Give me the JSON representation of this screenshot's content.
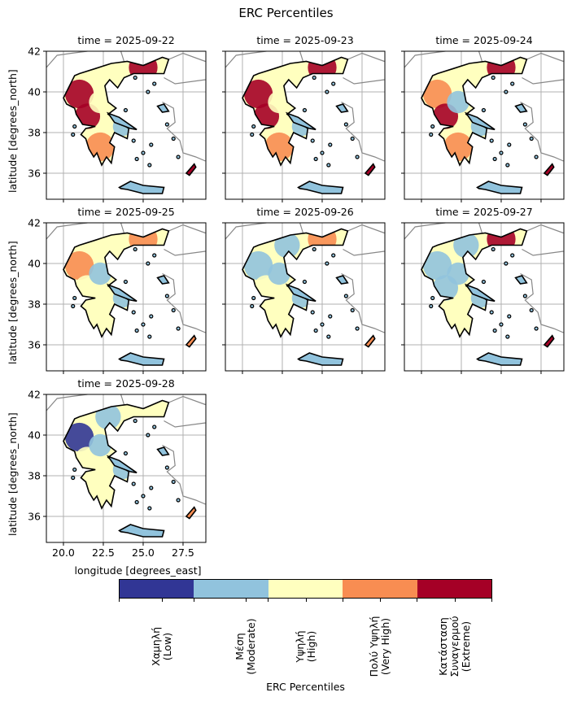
{
  "title": "ERC Percentiles",
  "chart_data": {
    "type": "heatmap",
    "title": "ERC Percentiles",
    "xlabel": "longitude [degrees_east]",
    "ylabel": "latitude [degrees_north]",
    "xlim": [
      18.9,
      28.9
    ],
    "ylim": [
      34.7,
      42
    ],
    "xticks": [
      "20.0",
      "22.5",
      "25.0",
      "27.5"
    ],
    "yticks": [
      "36",
      "38",
      "40",
      "42"
    ],
    "grid": true,
    "colorbar": {
      "label": "ERC Percentiles",
      "categories": [
        {
          "label": "Χαμηλή\n(Low)",
          "color": "#313695"
        },
        {
          "label": "Μέση\n(Moderate)",
          "color": "#91c3dd"
        },
        {
          "label": "Υψηλή\n(High)",
          "color": "#ffffbf"
        },
        {
          "label": "Πολύ Υψηλή\n(Very High)",
          "color": "#f88d52"
        },
        {
          "label": "Κατάσταση\nΣυναγερμού\n(Extreme)",
          "color": "#a50026"
        }
      ]
    },
    "regions": [
      "northwest",
      "west-central",
      "peloponnese",
      "thessaly",
      "central-macedonia",
      "thrace",
      "attica-evia",
      "crete",
      "rhodes",
      "islands"
    ],
    "panels": [
      {
        "title": "time = 2025-09-22",
        "region_category": [
          4,
          4,
          3,
          2,
          2,
          4,
          1,
          1,
          4,
          1
        ]
      },
      {
        "title": "time = 2025-09-23",
        "region_category": [
          4,
          4,
          3,
          2,
          2,
          4,
          1,
          1,
          4,
          1
        ]
      },
      {
        "title": "time = 2025-09-24",
        "region_category": [
          3,
          4,
          3,
          1,
          2,
          4,
          1,
          1,
          4,
          1
        ]
      },
      {
        "title": "time = 2025-09-25",
        "region_category": [
          3,
          2,
          2,
          1,
          2,
          3,
          1,
          1,
          3,
          1
        ]
      },
      {
        "title": "time = 2025-09-26",
        "region_category": [
          1,
          2,
          2,
          1,
          1,
          3,
          1,
          1,
          3,
          1
        ]
      },
      {
        "title": "time = 2025-09-27",
        "region_category": [
          1,
          1,
          2,
          1,
          1,
          4,
          1,
          1,
          4,
          1
        ]
      },
      {
        "title": "time = 2025-09-28",
        "region_category": [
          0,
          2,
          2,
          1,
          1,
          2,
          1,
          1,
          3,
          1
        ]
      }
    ]
  }
}
